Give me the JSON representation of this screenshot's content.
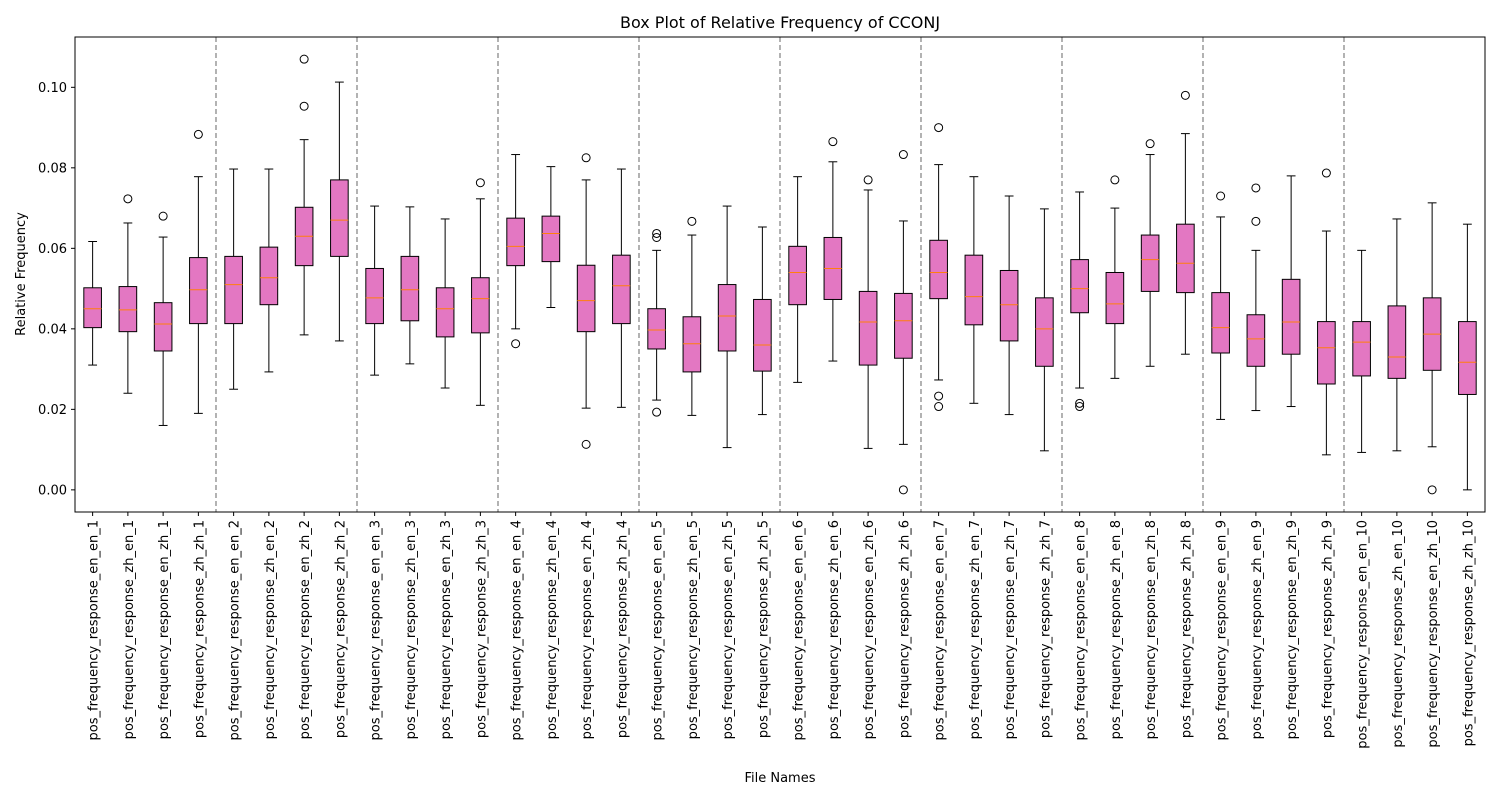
{
  "chart_data": {
    "type": "box",
    "title": "Box Plot of Relative Frequency of CCONJ",
    "xlabel": "File Names",
    "ylabel": "Relative Frequency",
    "ylim": [
      -0.0055,
      0.1125
    ],
    "yticks": [
      0.0,
      0.02,
      0.04,
      0.06,
      0.08,
      0.1
    ],
    "ytick_labels": [
      "0.00",
      "0.02",
      "0.04",
      "0.06",
      "0.08",
      "0.10"
    ],
    "group_separators_after": [
      4,
      8,
      12,
      16,
      20,
      24,
      28,
      32,
      36
    ],
    "colors": {
      "box_fill": "#e377c2",
      "median": "#ff7f0e",
      "whisker": "#000000",
      "separator": "#808080"
    },
    "boxes": [
      {
        "label": "pos_frequency_response_en_en_1",
        "whislo": 0.031,
        "q1": 0.0403,
        "med": 0.045,
        "q3": 0.0502,
        "whishi": 0.0617,
        "fliers": []
      },
      {
        "label": "pos_frequency_response_zh_en_1",
        "whislo": 0.024,
        "q1": 0.0393,
        "med": 0.0447,
        "q3": 0.0505,
        "whishi": 0.0663,
        "fliers": [
          0.0723
        ]
      },
      {
        "label": "pos_frequency_response_en_zh_1",
        "whislo": 0.016,
        "q1": 0.0345,
        "med": 0.0412,
        "q3": 0.0465,
        "whishi": 0.0628,
        "fliers": [
          0.068
        ]
      },
      {
        "label": "pos_frequency_response_zh_zh_1",
        "whislo": 0.019,
        "q1": 0.0413,
        "med": 0.0497,
        "q3": 0.0577,
        "whishi": 0.0778,
        "fliers": [
          0.0883
        ]
      },
      {
        "label": "pos_frequency_response_en_en_2",
        "whislo": 0.025,
        "q1": 0.0413,
        "med": 0.051,
        "q3": 0.058,
        "whishi": 0.0797,
        "fliers": []
      },
      {
        "label": "pos_frequency_response_zh_en_2",
        "whislo": 0.0293,
        "q1": 0.046,
        "med": 0.0527,
        "q3": 0.0603,
        "whishi": 0.0797,
        "fliers": []
      },
      {
        "label": "pos_frequency_response_en_zh_2",
        "whislo": 0.0385,
        "q1": 0.0557,
        "med": 0.063,
        "q3": 0.0702,
        "whishi": 0.087,
        "fliers": [
          0.0953,
          0.107
        ]
      },
      {
        "label": "pos_frequency_response_zh_zh_2",
        "whislo": 0.037,
        "q1": 0.058,
        "med": 0.067,
        "q3": 0.077,
        "whishi": 0.1013,
        "fliers": []
      },
      {
        "label": "pos_frequency_response_en_en_3",
        "whislo": 0.0285,
        "q1": 0.0413,
        "med": 0.0477,
        "q3": 0.055,
        "whishi": 0.0705,
        "fliers": []
      },
      {
        "label": "pos_frequency_response_zh_en_3",
        "whislo": 0.0313,
        "q1": 0.042,
        "med": 0.0497,
        "q3": 0.058,
        "whishi": 0.0703,
        "fliers": []
      },
      {
        "label": "pos_frequency_response_en_zh_3",
        "whislo": 0.0253,
        "q1": 0.038,
        "med": 0.045,
        "q3": 0.0502,
        "whishi": 0.0673,
        "fliers": []
      },
      {
        "label": "pos_frequency_response_zh_zh_3",
        "whislo": 0.021,
        "q1": 0.039,
        "med": 0.0475,
        "q3": 0.0527,
        "whishi": 0.0723,
        "fliers": [
          0.0763
        ]
      },
      {
        "label": "pos_frequency_response_en_en_4",
        "whislo": 0.04,
        "q1": 0.0557,
        "med": 0.0605,
        "q3": 0.0675,
        "whishi": 0.0833,
        "fliers": [
          0.0363
        ]
      },
      {
        "label": "pos_frequency_response_zh_en_4",
        "whislo": 0.0453,
        "q1": 0.0567,
        "med": 0.0637,
        "q3": 0.068,
        "whishi": 0.0803,
        "fliers": []
      },
      {
        "label": "pos_frequency_response_en_zh_4",
        "whislo": 0.0203,
        "q1": 0.0393,
        "med": 0.047,
        "q3": 0.0558,
        "whishi": 0.077,
        "fliers": [
          0.0825,
          0.0113
        ]
      },
      {
        "label": "pos_frequency_response_zh_zh_4",
        "whislo": 0.0205,
        "q1": 0.0413,
        "med": 0.0507,
        "q3": 0.0583,
        "whishi": 0.0797,
        "fliers": []
      },
      {
        "label": "pos_frequency_response_en_en_5",
        "whislo": 0.0223,
        "q1": 0.035,
        "med": 0.0397,
        "q3": 0.045,
        "whishi": 0.0595,
        "fliers": [
          0.0637,
          0.0627,
          0.0193
        ]
      },
      {
        "label": "pos_frequency_response_zh_en_5",
        "whislo": 0.0185,
        "q1": 0.0293,
        "med": 0.0363,
        "q3": 0.043,
        "whishi": 0.0633,
        "fliers": [
          0.0667
        ]
      },
      {
        "label": "pos_frequency_response_en_zh_5",
        "whislo": 0.0105,
        "q1": 0.0345,
        "med": 0.0432,
        "q3": 0.051,
        "whishi": 0.0705,
        "fliers": []
      },
      {
        "label": "pos_frequency_response_zh_zh_5",
        "whislo": 0.0187,
        "q1": 0.0295,
        "med": 0.036,
        "q3": 0.0473,
        "whishi": 0.0653,
        "fliers": []
      },
      {
        "label": "pos_frequency_response_en_en_6",
        "whislo": 0.0267,
        "q1": 0.046,
        "med": 0.054,
        "q3": 0.0605,
        "whishi": 0.0778,
        "fliers": []
      },
      {
        "label": "pos_frequency_response_zh_en_6",
        "whislo": 0.032,
        "q1": 0.0473,
        "med": 0.055,
        "q3": 0.0627,
        "whishi": 0.0815,
        "fliers": [
          0.0865
        ]
      },
      {
        "label": "pos_frequency_response_en_zh_6",
        "whislo": 0.0103,
        "q1": 0.031,
        "med": 0.0417,
        "q3": 0.0493,
        "whishi": 0.0745,
        "fliers": [
          0.077
        ]
      },
      {
        "label": "pos_frequency_response_zh_zh_6",
        "whislo": 0.0113,
        "q1": 0.0327,
        "med": 0.042,
        "q3": 0.0488,
        "whishi": 0.0668,
        "fliers": [
          0.0833,
          0.0
        ]
      },
      {
        "label": "pos_frequency_response_en_en_7",
        "whislo": 0.0273,
        "q1": 0.0475,
        "med": 0.054,
        "q3": 0.062,
        "whishi": 0.0808,
        "fliers": [
          0.09,
          0.0233,
          0.0207
        ]
      },
      {
        "label": "pos_frequency_response_zh_en_7",
        "whislo": 0.0215,
        "q1": 0.041,
        "med": 0.048,
        "q3": 0.0583,
        "whishi": 0.0778,
        "fliers": []
      },
      {
        "label": "pos_frequency_response_en_zh_7",
        "whislo": 0.0187,
        "q1": 0.037,
        "med": 0.046,
        "q3": 0.0545,
        "whishi": 0.073,
        "fliers": []
      },
      {
        "label": "pos_frequency_response_zh_zh_7",
        "whislo": 0.0097,
        "q1": 0.0307,
        "med": 0.04,
        "q3": 0.0477,
        "whishi": 0.0698,
        "fliers": []
      },
      {
        "label": "pos_frequency_response_en_en_8",
        "whislo": 0.0253,
        "q1": 0.044,
        "med": 0.05,
        "q3": 0.0572,
        "whishi": 0.074,
        "fliers": [
          0.0215,
          0.0207
        ]
      },
      {
        "label": "pos_frequency_response_zh_en_8",
        "whislo": 0.0277,
        "q1": 0.0413,
        "med": 0.0462,
        "q3": 0.054,
        "whishi": 0.07,
        "fliers": [
          0.077
        ]
      },
      {
        "label": "pos_frequency_response_en_zh_8",
        "whislo": 0.0307,
        "q1": 0.0493,
        "med": 0.0572,
        "q3": 0.0633,
        "whishi": 0.0833,
        "fliers": [
          0.086
        ]
      },
      {
        "label": "pos_frequency_response_zh_zh_8",
        "whislo": 0.0337,
        "q1": 0.049,
        "med": 0.0563,
        "q3": 0.066,
        "whishi": 0.0885,
        "fliers": [
          0.098
        ]
      },
      {
        "label": "pos_frequency_response_en_en_9",
        "whislo": 0.0175,
        "q1": 0.034,
        "med": 0.0403,
        "q3": 0.049,
        "whishi": 0.0678,
        "fliers": [
          0.073
        ]
      },
      {
        "label": "pos_frequency_response_zh_en_9",
        "whislo": 0.0197,
        "q1": 0.0307,
        "med": 0.0375,
        "q3": 0.0435,
        "whishi": 0.0595,
        "fliers": [
          0.075,
          0.0667
        ]
      },
      {
        "label": "pos_frequency_response_en_zh_9",
        "whislo": 0.0207,
        "q1": 0.0337,
        "med": 0.0417,
        "q3": 0.0523,
        "whishi": 0.078,
        "fliers": []
      },
      {
        "label": "pos_frequency_response_zh_zh_9",
        "whislo": 0.0087,
        "q1": 0.0263,
        "med": 0.0353,
        "q3": 0.0418,
        "whishi": 0.0643,
        "fliers": [
          0.0787
        ]
      },
      {
        "label": "pos_frequency_response_en_en_10",
        "whislo": 0.0093,
        "q1": 0.0283,
        "med": 0.0367,
        "q3": 0.0418,
        "whishi": 0.0595,
        "fliers": []
      },
      {
        "label": "pos_frequency_response_zh_en_10",
        "whislo": 0.0097,
        "q1": 0.0277,
        "med": 0.033,
        "q3": 0.0457,
        "whishi": 0.0673,
        "fliers": []
      },
      {
        "label": "pos_frequency_response_en_zh_10",
        "whislo": 0.0107,
        "q1": 0.0297,
        "med": 0.0387,
        "q3": 0.0477,
        "whishi": 0.0713,
        "fliers": [
          0.0
        ]
      },
      {
        "label": "pos_frequency_response_zh_zh_10",
        "whislo": 0.0,
        "q1": 0.0237,
        "med": 0.0317,
        "q3": 0.0418,
        "whishi": 0.066,
        "fliers": []
      }
    ]
  }
}
